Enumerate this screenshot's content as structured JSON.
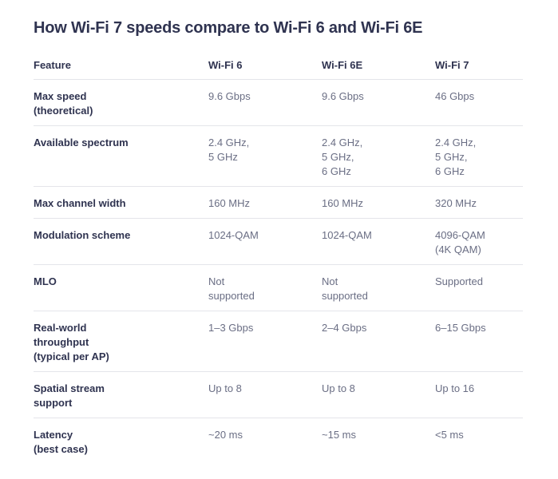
{
  "title": "How Wi-Fi 7 speeds compare to Wi-Fi 6 and Wi-Fi 6E",
  "table": {
    "headers": [
      "Feature",
      "Wi-Fi 6",
      "Wi-Fi 6E",
      "Wi-Fi 7"
    ],
    "rows": [
      [
        "Max speed\n(theoretical)",
        "9.6 Gbps",
        "9.6 Gbps",
        "46 Gbps"
      ],
      [
        "Available spectrum",
        "2.4 GHz,\n5 GHz",
        "2.4 GHz,\n5 GHz,\n6 GHz",
        "2.4 GHz,\n5 GHz,\n6 GHz"
      ],
      [
        "Max channel width",
        "160 MHz",
        "160 MHz",
        "320 MHz"
      ],
      [
        "Modulation scheme",
        "1024-QAM",
        "1024-QAM",
        "4096-QAM\n(4K QAM)"
      ],
      [
        "MLO",
        "Not\nsupported",
        "Not\nsupported",
        "Supported"
      ],
      [
        "Real-world\nthroughput\n(typical per AP)",
        "1–3 Gbps",
        "2–4 Gbps",
        "6–15 Gbps"
      ],
      [
        "Spatial stream\nsupport",
        "Up to 8",
        "Up to 8",
        "Up to 16"
      ],
      [
        "Latency\n(best case)",
        "~20 ms",
        "~15 ms",
        "<5 ms"
      ]
    ]
  }
}
